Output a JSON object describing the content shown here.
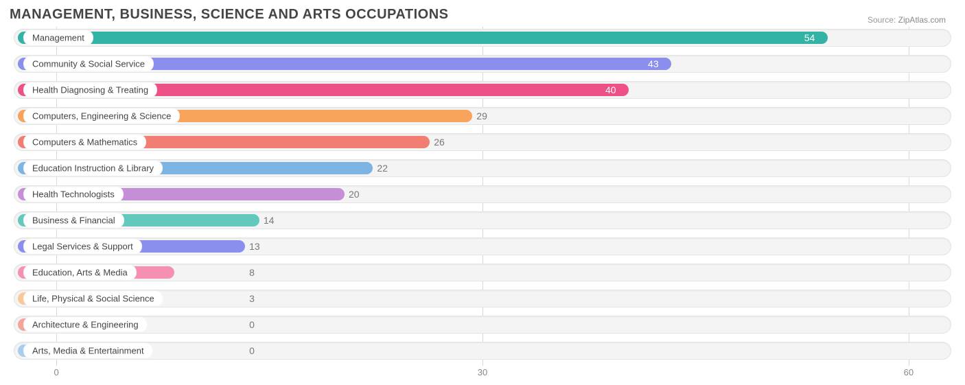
{
  "title": "MANAGEMENT, BUSINESS, SCIENCE AND ARTS OCCUPATIONS",
  "source_prefix": "Source: ",
  "source_brand": "ZipAtlas.com",
  "chart": {
    "type": "bar-horizontal",
    "background_color": "#ffffff",
    "track_bg": "#f4f4f4",
    "track_border": "#e3e3e3",
    "grid_color": "#d8d8d8",
    "axis_label_color": "#888888",
    "value_label_color_outside": "#777777",
    "value_label_color_inside": "#ffffff",
    "pill_text_color": "#444444",
    "label_fontsize": 13,
    "value_fontsize": 14,
    "xmin": -3,
    "xmax": 63,
    "ticks": [
      0,
      30,
      60
    ],
    "label_pill_approx_end_x": 13,
    "bars": [
      {
        "label": "Management",
        "value": 54,
        "color": "#33b2a6"
      },
      {
        "label": "Community & Social Service",
        "value": 43,
        "color": "#8a8eec"
      },
      {
        "label": "Health Diagnosing & Treating",
        "value": 40,
        "color": "#ee5187"
      },
      {
        "label": "Computers, Engineering & Science",
        "value": 29,
        "color": "#f7a45a"
      },
      {
        "label": "Computers & Mathematics",
        "value": 26,
        "color": "#f27e73"
      },
      {
        "label": "Education Instruction & Library",
        "value": 22,
        "color": "#7db4e4"
      },
      {
        "label": "Health Technologists",
        "value": 20,
        "color": "#c58fd8"
      },
      {
        "label": "Business & Financial",
        "value": 14,
        "color": "#63c9bd"
      },
      {
        "label": "Legal Services & Support",
        "value": 13,
        "color": "#8a8eec"
      },
      {
        "label": "Education, Arts & Media",
        "value": 8,
        "color": "#f590b3"
      },
      {
        "label": "Life, Physical & Social Science",
        "value": 3,
        "color": "#fac894"
      },
      {
        "label": "Architecture & Engineering",
        "value": 0,
        "color": "#f4a49c"
      },
      {
        "label": "Arts, Media & Entertainment",
        "value": 0,
        "color": "#a9cdef"
      }
    ]
  }
}
